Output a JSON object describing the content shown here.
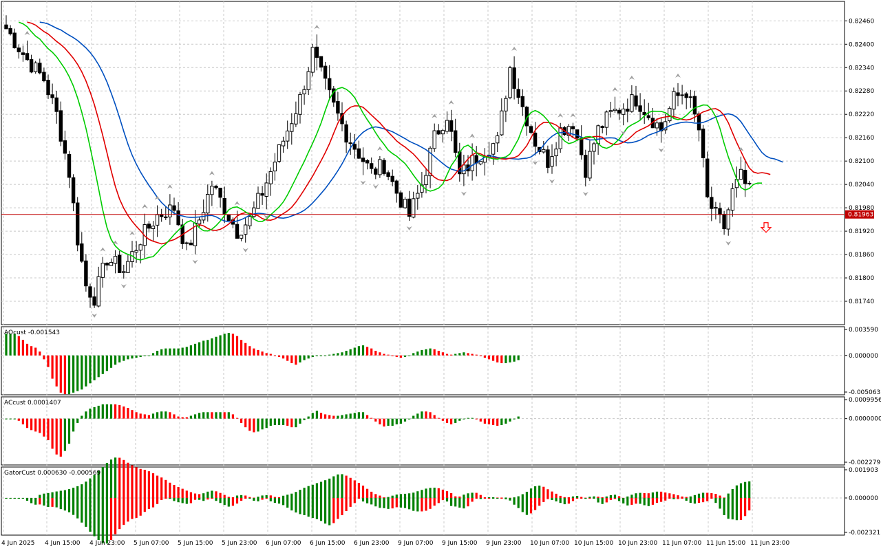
{
  "colors": {
    "background": "#ffffff",
    "grid": "#c8c8c8",
    "bull_candle": "#ffffff",
    "bear_candle": "#000000",
    "ma_fast": "#00cc00",
    "ma_mid": "#e00000",
    "ma_slow": "#0050c0",
    "price_line": "#c00000",
    "hist_up": "#008000",
    "hist_down": "#ff0000",
    "arrow": "#a0a0a0",
    "signal_arrow": "#ff0000"
  },
  "chart_data": [
    {
      "type": "candlestick",
      "name": "main",
      "y_ticks": [
        "0.82460",
        "0.82400",
        "0.82340",
        "0.82280",
        "0.82220",
        "0.82160",
        "0.82100",
        "0.82040",
        "0.81980",
        "0.81920",
        "0.81860",
        "0.81800",
        "0.81740"
      ],
      "ylim": [
        0.8168,
        0.8251
      ],
      "current_price": "0.81963",
      "x_tick_labels": [
        "4 Jun 2025",
        "4 Jun 15:00",
        "4 Jun 23:00",
        "5 Jun 07:00",
        "5 Jun 15:00",
        "5 Jun 23:00",
        "6 Jun 07:00",
        "6 Jun 15:00",
        "6 Jun 23:00",
        "9 Jun 07:00",
        "9 Jun 15:00",
        "9 Jun 23:00",
        "10 Jun 07:00",
        "10 Jun 15:00",
        "10 Jun 23:00",
        "11 Jun 07:00",
        "11 Jun 15:00",
        "11 Jun 23:00"
      ],
      "signal": "sell-arrow"
    },
    {
      "type": "bar",
      "name": "AOcust",
      "label": "AOcust -0.001543",
      "y_ticks": [
        "0.003590",
        "0.000000",
        "-0.005063"
      ],
      "ylim": [
        -0.005063,
        0.00359
      ]
    },
    {
      "type": "bar",
      "name": "ACcust",
      "label": "ACcust 0.0001407",
      "y_ticks": [
        "0.0009956",
        "0.0000000",
        "-0.0022796"
      ],
      "ylim": [
        -0.0022796,
        0.0009956
      ]
    },
    {
      "type": "bar",
      "name": "GatorCust",
      "label": "GatorCust 0.000630 -0.000569",
      "y_ticks": [
        "0.001903",
        "0.000000",
        "-0.002321"
      ],
      "ylim": [
        -0.002321,
        0.001903
      ]
    }
  ],
  "price_anchors": [
    [
      0,
      0.8244
    ],
    [
      5,
      0.8236
    ],
    [
      9,
      0.8231
    ],
    [
      12,
      0.8222
    ],
    [
      15,
      0.8207
    ],
    [
      17,
      0.819
    ],
    [
      19,
      0.8178
    ],
    [
      21,
      0.8175
    ],
    [
      24,
      0.8185
    ],
    [
      28,
      0.8182
    ],
    [
      32,
      0.819
    ],
    [
      36,
      0.8196
    ],
    [
      40,
      0.8198
    ],
    [
      43,
      0.8187
    ],
    [
      46,
      0.8195
    ],
    [
      49,
      0.8204
    ],
    [
      52,
      0.8198
    ],
    [
      55,
      0.8192
    ],
    [
      58,
      0.8195
    ],
    [
      61,
      0.8202
    ],
    [
      64,
      0.821
    ],
    [
      67,
      0.8218
    ],
    [
      70,
      0.8226
    ],
    [
      73,
      0.8238
    ],
    [
      75,
      0.8232
    ],
    [
      78,
      0.8224
    ],
    [
      81,
      0.8217
    ],
    [
      84,
      0.8212
    ],
    [
      87,
      0.8207
    ],
    [
      90,
      0.8209
    ],
    [
      93,
      0.8202
    ],
    [
      96,
      0.8196
    ],
    [
      99,
      0.8204
    ],
    [
      102,
      0.8216
    ],
    [
      105,
      0.8222
    ],
    [
      108,
      0.8206
    ],
    [
      111,
      0.821
    ],
    [
      114,
      0.8213
    ],
    [
      117,
      0.8215
    ],
    [
      120,
      0.8234
    ],
    [
      123,
      0.8224
    ],
    [
      126,
      0.8215
    ],
    [
      129,
      0.821
    ],
    [
      132,
      0.8218
    ],
    [
      135,
      0.822
    ],
    [
      138,
      0.8208
    ],
    [
      141,
      0.8218
    ],
    [
      144,
      0.8222
    ],
    [
      147,
      0.8224
    ],
    [
      150,
      0.8226
    ],
    [
      153,
      0.8222
    ],
    [
      156,
      0.8218
    ],
    [
      159,
      0.8226
    ],
    [
      162,
      0.8228
    ],
    [
      165,
      0.8218
    ],
    [
      167,
      0.82
    ],
    [
      169,
      0.8196
    ],
    [
      171,
      0.8193
    ],
    [
      173,
      0.8202
    ],
    [
      175,
      0.8206
    ],
    [
      177,
      0.8202
    ]
  ],
  "indicator_bars": {
    "ao": [
      28,
      28,
      28,
      25,
      20,
      15,
      12,
      10,
      5,
      -5,
      -15,
      -30,
      -40,
      -48,
      -50,
      -50,
      -48,
      -46,
      -44,
      -40,
      -36,
      -32,
      -28,
      -24,
      -20,
      -16,
      -12,
      -9,
      -7,
      -5,
      -4,
      -3,
      -2,
      -1,
      0,
      3,
      6,
      8,
      9,
      9,
      9,
      9,
      10,
      11,
      13,
      15,
      17,
      19,
      20,
      22,
      24,
      26,
      28,
      29,
      28,
      25,
      20,
      16,
      12,
      9,
      7,
      5,
      3,
      2,
      0,
      -2,
      -4,
      -7,
      -10,
      -12,
      -9,
      -6,
      -4,
      -2,
      -1,
      -1,
      0,
      1,
      2,
      3,
      4,
      6,
      8,
      10,
      12,
      13,
      11,
      9,
      6,
      4,
      2,
      1,
      -1,
      -2,
      -3,
      -2,
      0,
      3,
      5,
      7,
      8,
      9,
      8,
      6,
      4,
      2,
      1,
      2,
      3,
      4,
      3,
      2,
      1,
      -1,
      -3,
      -5,
      -7,
      -9,
      -10,
      -10,
      -9,
      -8,
      -6
    ]
  }
}
